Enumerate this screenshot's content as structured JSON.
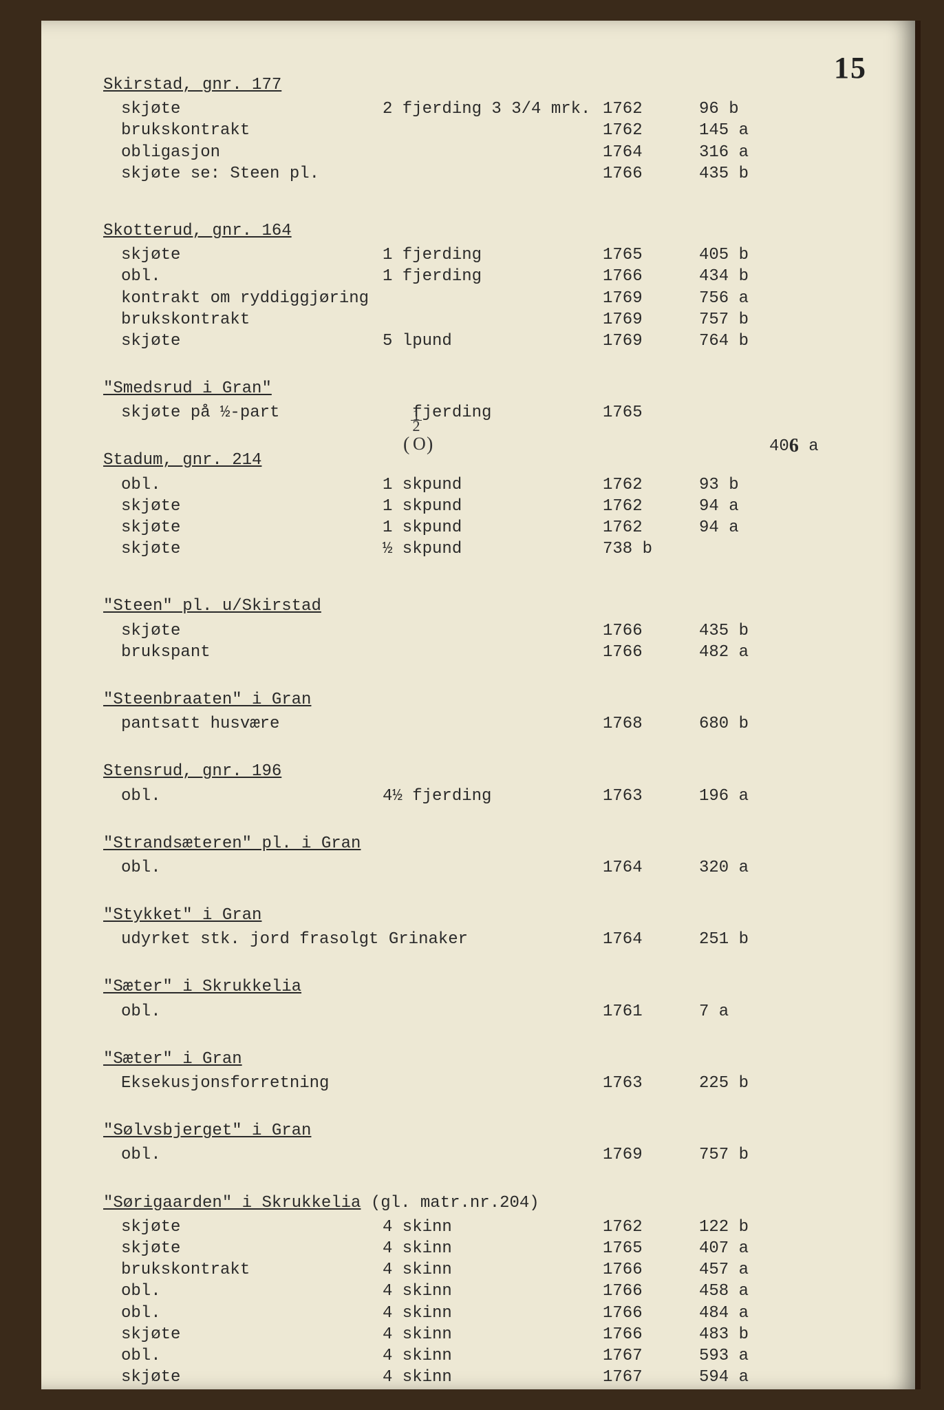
{
  "page_number": "15",
  "font": {
    "family": "Courier New",
    "size_pt": 18,
    "color": "#2a2a2a"
  },
  "paper_color": "#ede8d4",
  "binding_color": "#3a2a1a",
  "sections": [
    {
      "title": "Skirstad, gnr. 177",
      "rows": [
        {
          "c1": "skjøte",
          "c2": "2 fjerding 3 3/4 mrk.",
          "c3": "1762",
          "c4": "96 b"
        },
        {
          "c1": "brukskontrakt",
          "c2": "",
          "c3": "1762",
          "c4": "145 a"
        },
        {
          "c1": "obligasjon",
          "c2": "",
          "c3": "1764",
          "c4": "316 a"
        },
        {
          "c1": "skjøte se: Steen pl.",
          "c2": "",
          "c3": "1766",
          "c4": "435 b"
        }
      ]
    },
    {
      "title": "Skotterud, gnr. 164",
      "rows": [
        {
          "c1": "skjøte",
          "c2": "1 fjerding",
          "c3": "1765",
          "c4": "405 b"
        },
        {
          "c1": "obl.",
          "c2": "1 fjerding",
          "c3": "1766",
          "c4": "434 b"
        },
        {
          "c1": "kontrakt om ryddiggjøring",
          "c2": "",
          "c3": "1769",
          "c4": "756 a"
        },
        {
          "c1": "brukskontrakt",
          "c2": "",
          "c3": "1769",
          "c4": "757 b"
        },
        {
          "c1": "skjøte",
          "c2": "5 lpund",
          "c3": "1769",
          "c4": "764 b"
        }
      ]
    },
    {
      "title": "\"Smedsrud i Gran\"",
      "rows": [
        {
          "c1": "skjøte på ½-part",
          "c2": "   fjerding",
          "c3": "1765",
          "c4": ""
        }
      ],
      "annotations": {
        "fraction_over_col2": "1/2",
        "parenthesized_zero": "(0)",
        "c4_corrected": "406 a"
      }
    },
    {
      "title": "Stadum, gnr. 214",
      "rows": [
        {
          "c1": "obl.",
          "c2": "1 skpund",
          "c3": "1762",
          "c4": "93 b"
        },
        {
          "c1": "skjøte",
          "c2": "1 skpund",
          "c3": "1762",
          "c4": "94 a"
        },
        {
          "c1": "skjøte",
          "c2": "1 skpund",
          "c3": "1762",
          "c4": "94 a"
        },
        {
          "c1": "skjøte",
          "c2": "½ skpund",
          "c3": "738 b",
          "c4": ""
        }
      ]
    },
    {
      "title": "\"Steen\" pl. u/Skirstad",
      "rows": [
        {
          "c1": "skjøte",
          "c2": "",
          "c3": "1766",
          "c4": "435 b"
        },
        {
          "c1": "brukspant",
          "c2": "",
          "c3": "1766",
          "c4": "482 a"
        }
      ]
    },
    {
      "title": "\"Steenbraaten\" i Gran",
      "rows": [
        {
          "c1": "pantsatt husvære",
          "c2": "",
          "c3": "1768",
          "c4": "680 b"
        }
      ]
    },
    {
      "title": "Stensrud, gnr. 196",
      "rows": [
        {
          "c1": "obl.",
          "c2": "4½ fjerding",
          "c3": "1763",
          "c4": "196 a"
        }
      ]
    },
    {
      "title": "\"Strandsæteren\" pl. i Gran",
      "rows": [
        {
          "c1": "obl.",
          "c2": "",
          "c3": "1764",
          "c4": "320 a"
        }
      ]
    },
    {
      "title": "\"Stykket\" i Gran",
      "rows": [
        {
          "c1": "udyrket stk. jord frasolgt Grinaker",
          "c1_wide": true,
          "c3": "1764",
          "c4": "251 b"
        }
      ]
    },
    {
      "title": "\"Sæter\" i Skrukkelia",
      "rows": [
        {
          "c1": "obl.",
          "c2": "",
          "c3": "1761",
          "c4": "7 a"
        }
      ]
    },
    {
      "title": "\"Sæter\" i Gran",
      "rows": [
        {
          "c1": "Eksekusjonsforretning",
          "c2": "",
          "c3": "1763",
          "c4": "225 b"
        }
      ]
    },
    {
      "title": "\"Sølvsbjerget\" i Gran",
      "rows": [
        {
          "c1": "obl.",
          "c2": "",
          "c3": "1769",
          "c4": "757 b"
        }
      ]
    },
    {
      "title": "\"Sørigaarden\" i Skrukkelia",
      "title_suffix": " (gl. matr.nr.204)",
      "rows": [
        {
          "c1": "skjøte",
          "c2": "4 skinn",
          "c3": "1762",
          "c4": "122 b"
        },
        {
          "c1": "skjøte",
          "c2": "4 skinn",
          "c3": "1765",
          "c4": "407 a"
        },
        {
          "c1": "brukskontrakt",
          "c2": "4 skinn",
          "c3": "1766",
          "c4": "457 a"
        },
        {
          "c1": "obl.",
          "c2": "4 skinn",
          "c3": "1766",
          "c4": "458 a"
        },
        {
          "c1": "obl.",
          "c2": "4 skinn",
          "c3": "1766",
          "c4": "484 a"
        },
        {
          "c1": "skjøte",
          "c2": "4 skinn",
          "c3": "1766",
          "c4": "483 b"
        },
        {
          "c1": "obl.",
          "c2": "4 skinn",
          "c3": "1767",
          "c4": "593 a"
        },
        {
          "c1": "skjøte",
          "c2": "4 skinn",
          "c3": "1767",
          "c4": "594 a"
        }
      ]
    }
  ]
}
